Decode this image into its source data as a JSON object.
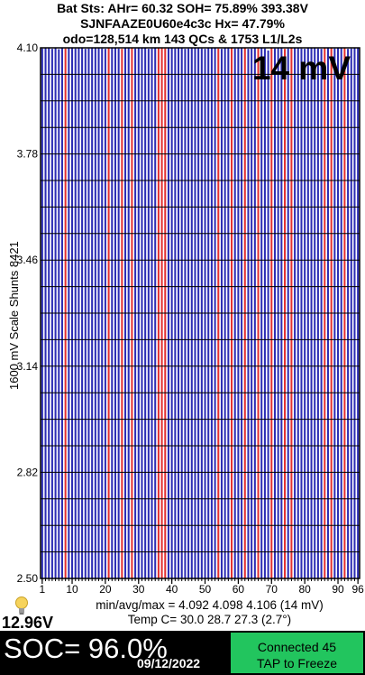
{
  "header": {
    "line1": "Bat Sts:  AHr= 60.32  SOH= 75.89%   393.38V",
    "line2": "SJNFAAZE0U60e4c3c   Hx= 47.79%",
    "line3": "odo=128,514 km 143 QCs & 1753 L1/L2s"
  },
  "chart_data": {
    "type": "bar",
    "count": 96,
    "ylim": [
      2.5,
      4.1
    ],
    "yticks": [
      "4.10",
      "3.78",
      "3.46",
      "3.14",
      "2.82",
      "2.50"
    ],
    "xticks": [
      "1",
      "10",
      "20",
      "30",
      "40",
      "50",
      "60",
      "70",
      "80",
      "90",
      "96"
    ],
    "ylabel": "1600 mV Scale   Shunts 8421",
    "annotation": "14 mV",
    "values": [
      4.098,
      4.1,
      4.102,
      4.097,
      4.099,
      4.096,
      4.101,
      4.098,
      4.104,
      4.1,
      4.098,
      4.099,
      4.102,
      4.097,
      4.098,
      4.1,
      4.099,
      4.101,
      4.098,
      4.097,
      4.1,
      4.099,
      4.103,
      4.098,
      4.097,
      4.1,
      4.099,
      4.101,
      4.098,
      4.1,
      4.099,
      4.102,
      4.097,
      4.098,
      4.1,
      4.099,
      4.101,
      4.098,
      4.106,
      4.1,
      4.098,
      4.099,
      4.102,
      4.097,
      4.098,
      4.1,
      4.099,
      4.101,
      4.098,
      4.097,
      4.1,
      4.099,
      4.103,
      4.098,
      4.097,
      4.1,
      4.099,
      4.101,
      4.098,
      4.1,
      4.099,
      4.102,
      4.097,
      4.098,
      4.1,
      4.099,
      4.101,
      4.098,
      4.092,
      4.1,
      4.098,
      4.099,
      4.102,
      4.097,
      4.098,
      4.1,
      4.099,
      4.101,
      4.098,
      4.097,
      4.1,
      4.099,
      4.103,
      4.098,
      4.097,
      4.1,
      4.099,
      4.101,
      4.098,
      4.1,
      4.099,
      4.102,
      4.097,
      4.098,
      4.1,
      4.099
    ],
    "shunts": [
      8,
      21,
      25,
      28,
      36,
      37,
      38,
      54,
      58,
      62,
      66,
      70,
      74,
      76,
      86,
      88,
      92
    ],
    "colors": {
      "bar": "#2c2cb4",
      "shunt": "#e23030",
      "grid": "#000000",
      "gap": "#ffffff"
    }
  },
  "bulb_icon": "lightbulb-icon",
  "voltage": "12.96V",
  "stats": {
    "line1": "min/avg/max = 4.092 4.098 4.106  (14 mV)",
    "line2": "Temp C= 30.0  28.7  27.3  (2.7°)"
  },
  "bottom": {
    "soc": "SOC= 96.0%",
    "date": "09/12/2022",
    "connect_line1": "Connected 45",
    "connect_line2": "TAP to Freeze"
  }
}
